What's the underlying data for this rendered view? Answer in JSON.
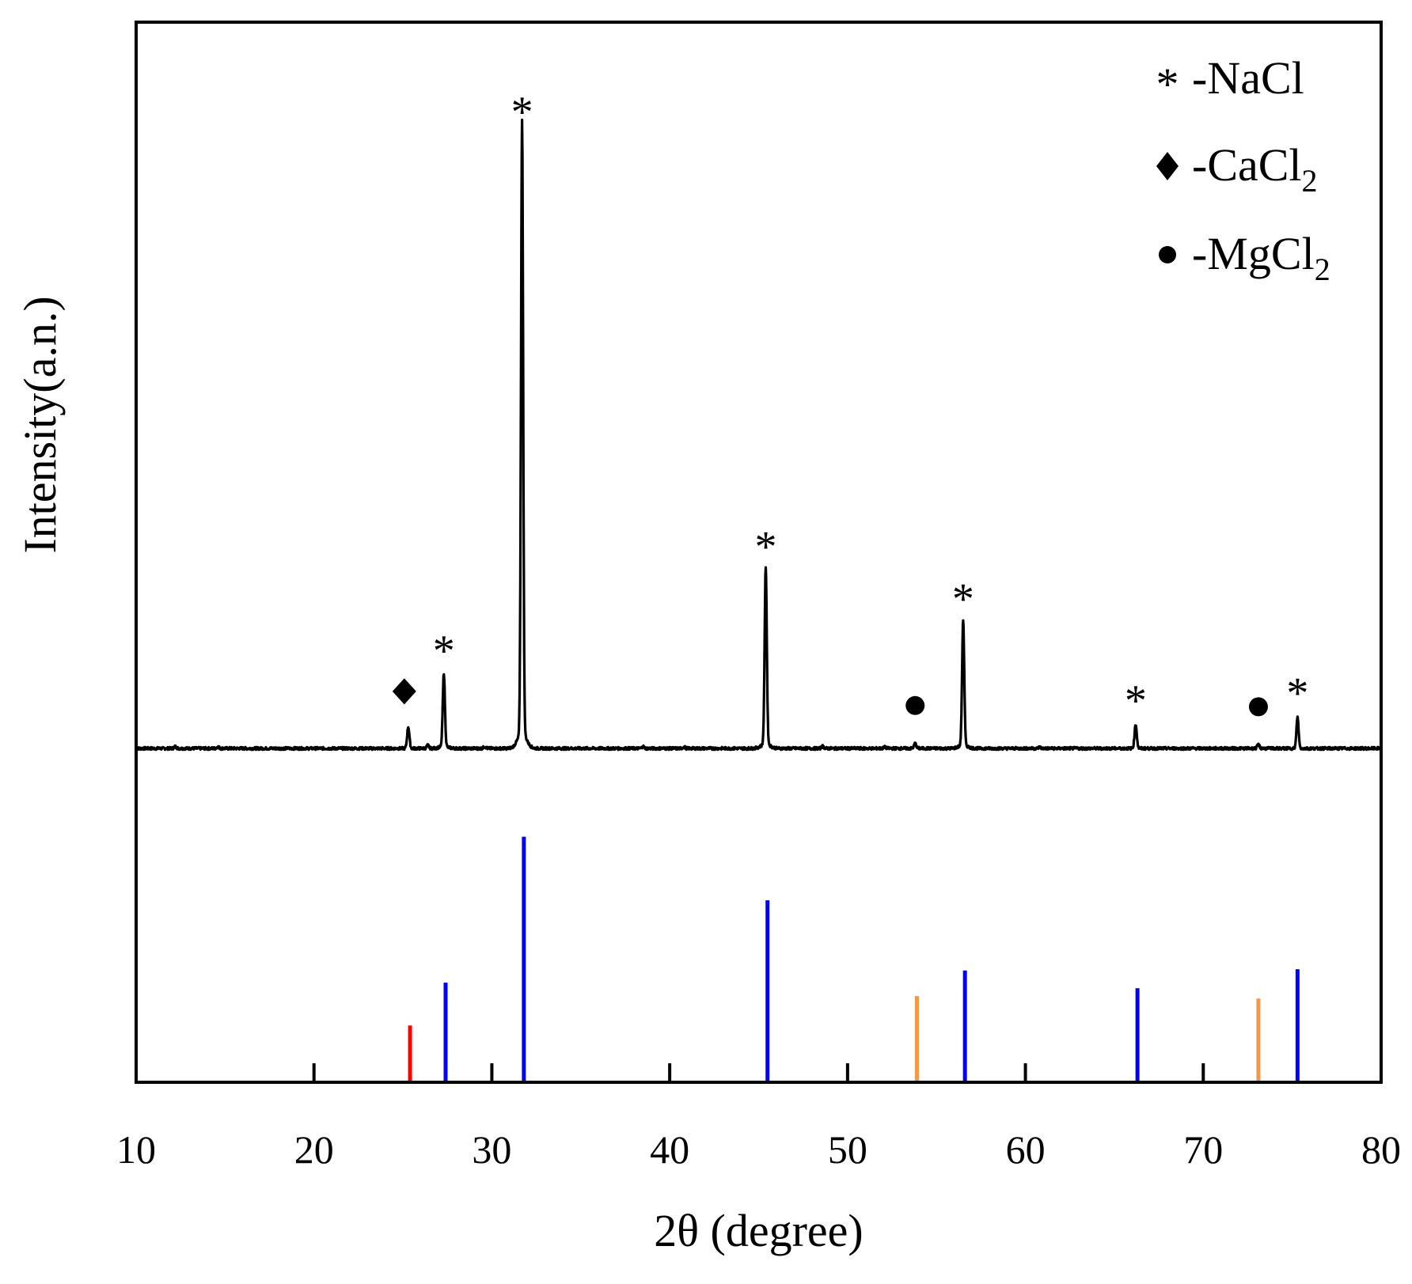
{
  "chart_data": {
    "type": "line",
    "title": "",
    "xlabel": "2θ  (degree)",
    "ylabel": "Intensity(a.n.)",
    "xlim": [
      10,
      80
    ],
    "ylim": [
      0,
      100
    ],
    "x_ticks": [
      10,
      20,
      30,
      40,
      50,
      60,
      70,
      80
    ],
    "x_tick_labels": [
      "10",
      "20",
      "30",
      "40",
      "50",
      "60",
      "70",
      "80"
    ],
    "grid": false,
    "legend_position": "top-right",
    "legend": [
      {
        "symbol": "*",
        "label": "-NaCl",
        "phase": "NaCl"
      },
      {
        "symbol": "◆",
        "label": "-CaCl",
        "subscript": "2",
        "phase": "CaCl2"
      },
      {
        "symbol": "●",
        "label": "-MgCl",
        "subscript": "2",
        "phase": "MgCl2"
      }
    ],
    "pattern": {
      "name": "measured XRD pattern",
      "color": "#000000",
      "baseline": 36,
      "peaks": [
        {
          "x": 25.3,
          "height": 3.5,
          "phase": "CaCl2",
          "marker": "◆"
        },
        {
          "x": 27.3,
          "height": 12,
          "phase": "NaCl",
          "marker": "*"
        },
        {
          "x": 31.7,
          "height": 100,
          "phase": "NaCl",
          "marker": "*"
        },
        {
          "x": 45.4,
          "height": 29,
          "phase": "NaCl",
          "marker": "*"
        },
        {
          "x": 53.8,
          "height": 0.8,
          "phase": "MgCl2",
          "marker": "●"
        },
        {
          "x": 56.5,
          "height": 20.5,
          "phase": "NaCl",
          "marker": "*"
        },
        {
          "x": 66.2,
          "height": 3.9,
          "phase": "NaCl",
          "marker": "*"
        },
        {
          "x": 73.1,
          "height": 0.6,
          "phase": "MgCl2",
          "marker": "●"
        },
        {
          "x": 75.3,
          "height": 5.1,
          "phase": "NaCl",
          "marker": "*"
        }
      ],
      "minor_bumps": [
        {
          "x": 12.2,
          "height": 0.3
        },
        {
          "x": 14.6,
          "height": 0.25
        },
        {
          "x": 26.4,
          "height": 0.5
        },
        {
          "x": 29.6,
          "height": 0.3
        },
        {
          "x": 38.5,
          "height": 0.3
        },
        {
          "x": 40.8,
          "height": 0.25
        },
        {
          "x": 48.6,
          "height": 0.35
        },
        {
          "x": 52.1,
          "height": 0.2
        },
        {
          "x": 60.8,
          "height": 0.2
        }
      ]
    },
    "reference_lines": [
      {
        "x": 25.4,
        "height": 9.3,
        "phase": "CaCl2",
        "color": "#ff0000"
      },
      {
        "x": 27.4,
        "height": 16.3,
        "phase": "NaCl",
        "color": "#0000ff"
      },
      {
        "x": 31.8,
        "height": 40.2,
        "phase": "NaCl",
        "color": "#0000ff"
      },
      {
        "x": 45.5,
        "height": 29.8,
        "phase": "NaCl",
        "color": "#0000ff"
      },
      {
        "x": 53.9,
        "height": 14.1,
        "phase": "MgCl2",
        "color": "#f79646"
      },
      {
        "x": 56.6,
        "height": 18.3,
        "phase": "NaCl",
        "color": "#0000ff"
      },
      {
        "x": 66.3,
        "height": 15.4,
        "phase": "NaCl",
        "color": "#0000ff"
      },
      {
        "x": 73.1,
        "height": 13.7,
        "phase": "MgCl2",
        "color": "#f79646"
      },
      {
        "x": 75.3,
        "height": 18.5,
        "phase": "NaCl",
        "color": "#0000ff"
      }
    ]
  }
}
